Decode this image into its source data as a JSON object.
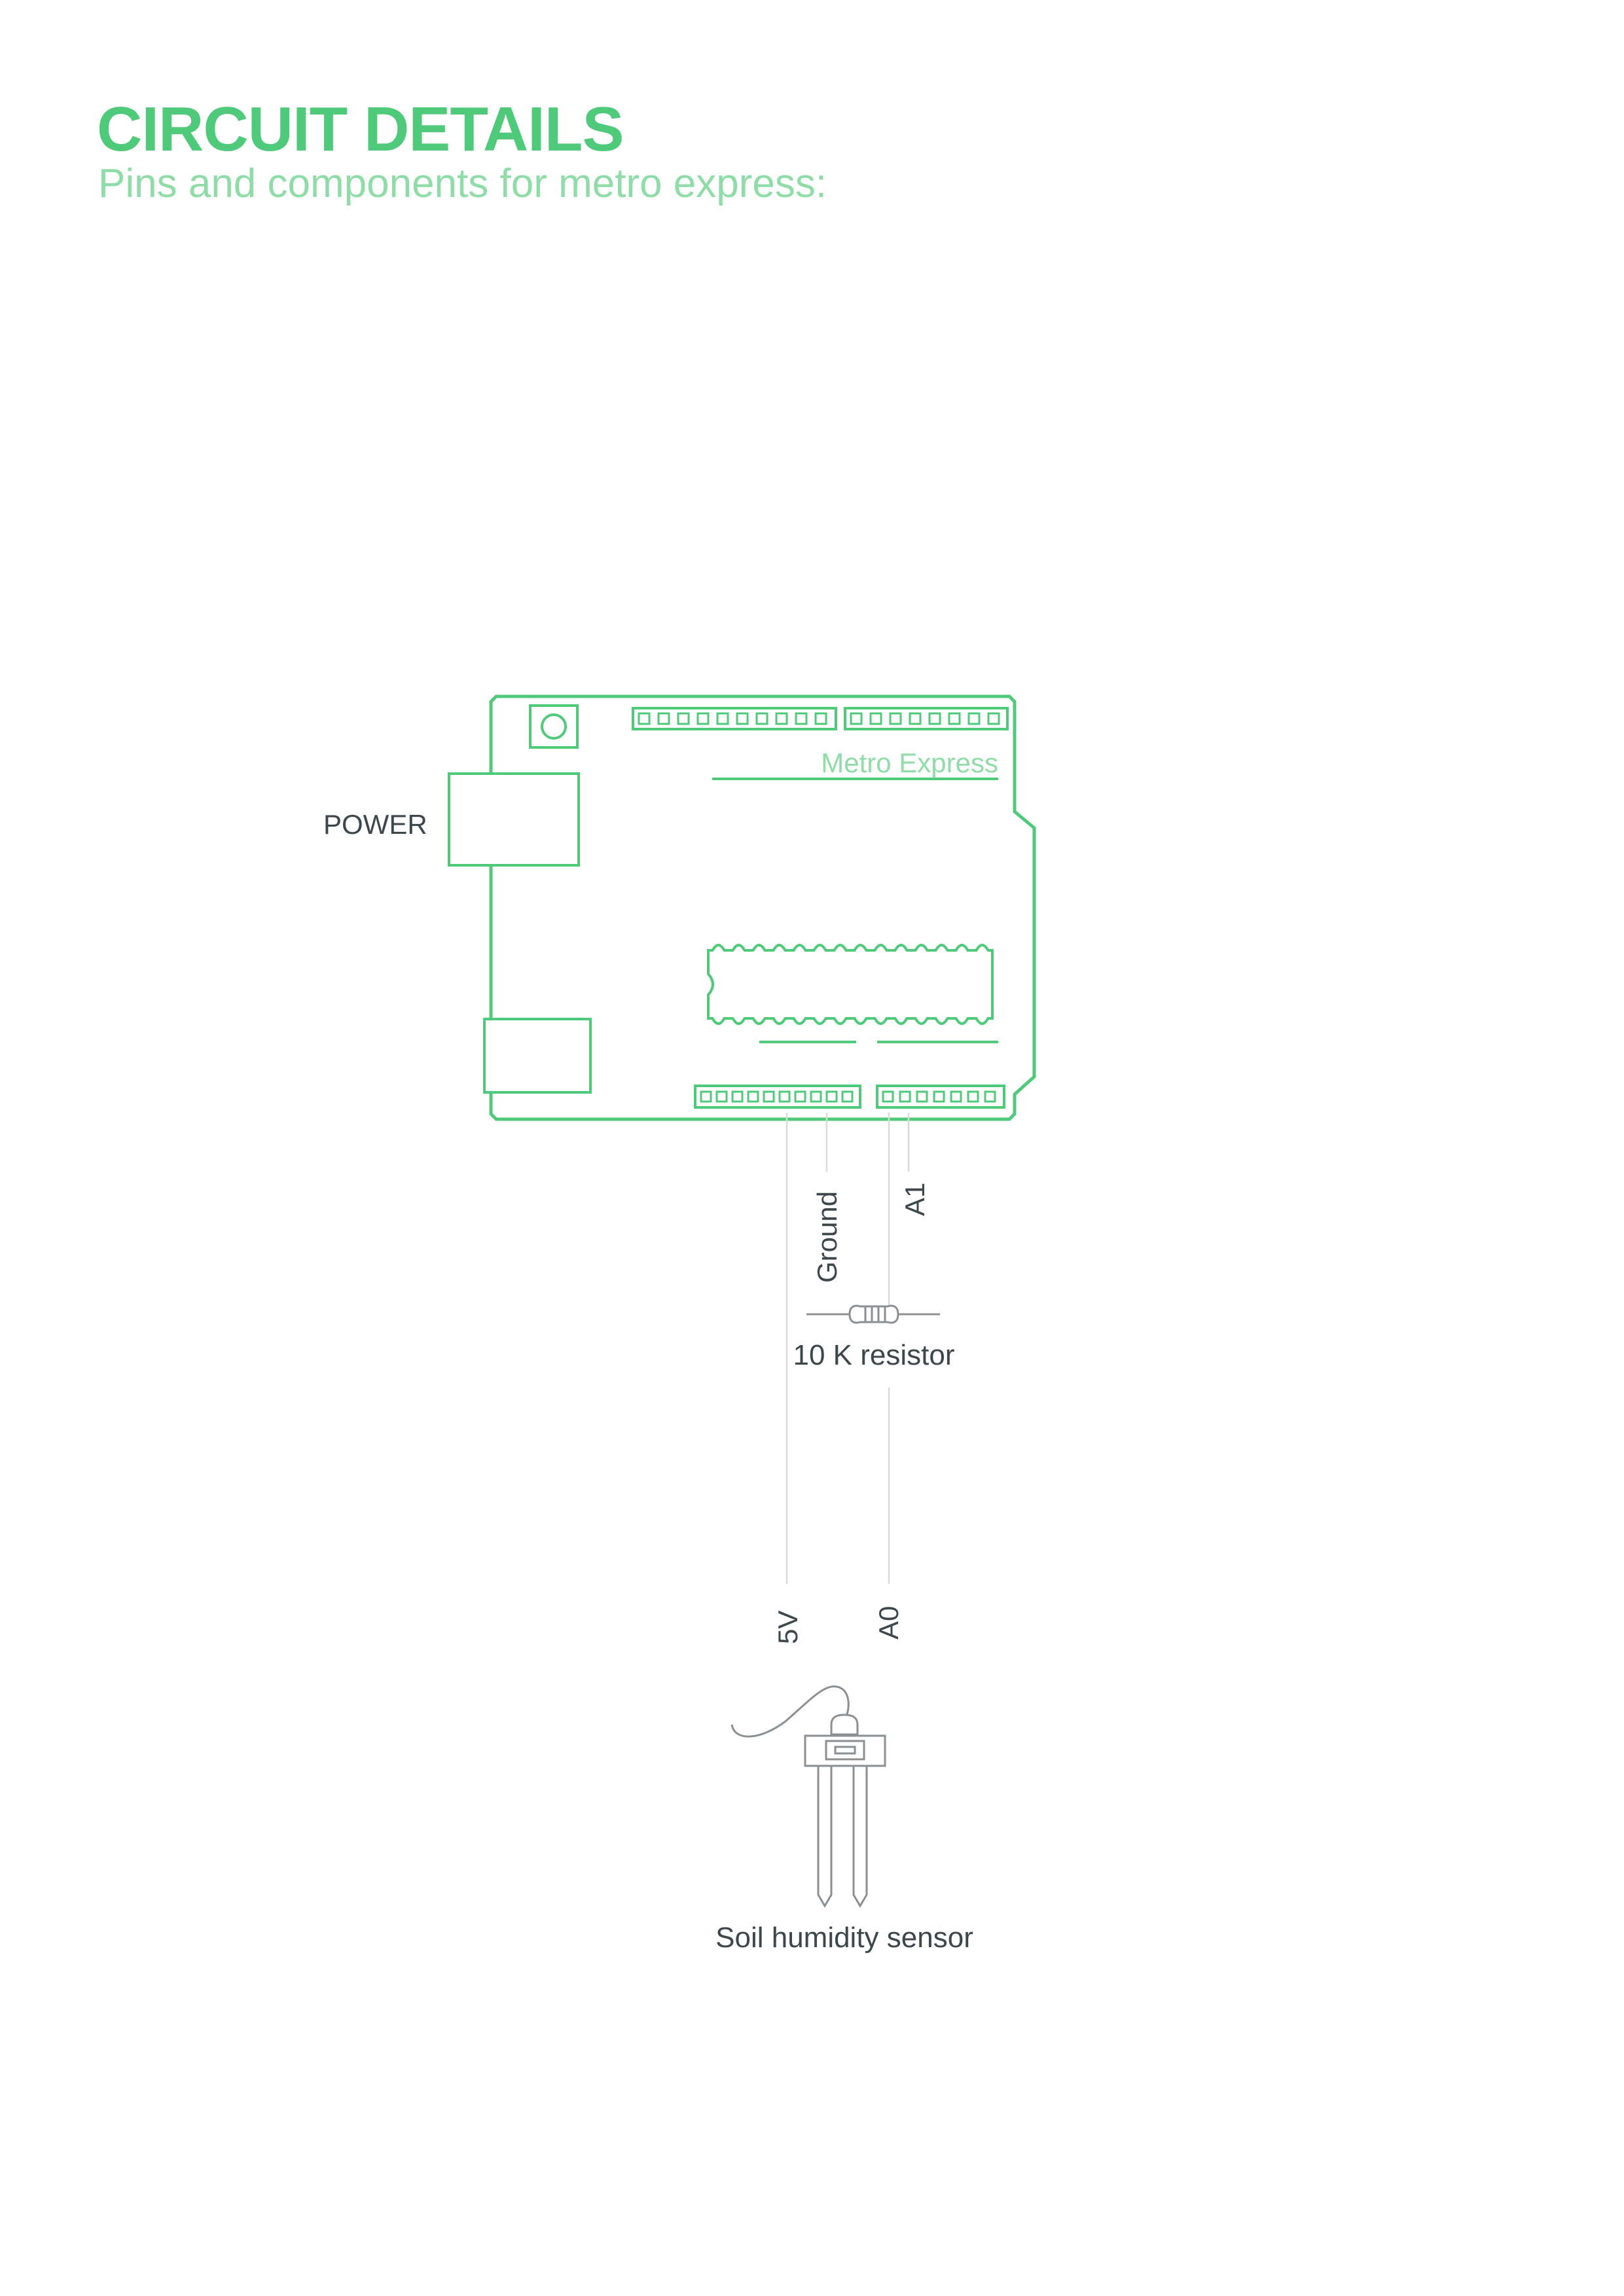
{
  "header": {
    "title": "CIRCUIT DETAILS",
    "subtitle": "Pins and components for metro express:"
  },
  "board": {
    "name": "Metro Express",
    "power_label": "POWER"
  },
  "wires": {
    "ground": "Ground",
    "a1": "A1",
    "v5": "5V",
    "a0": "A0"
  },
  "resistor": {
    "label": "10 K resistor"
  },
  "sensor": {
    "label": "Soil humidity sensor"
  },
  "colors": {
    "accent": "#4fc97a",
    "accent_light": "#8fdca8",
    "text_dark": "#3c474b",
    "wire": "#d9d9d9",
    "component_gray": "#8a8f93"
  }
}
